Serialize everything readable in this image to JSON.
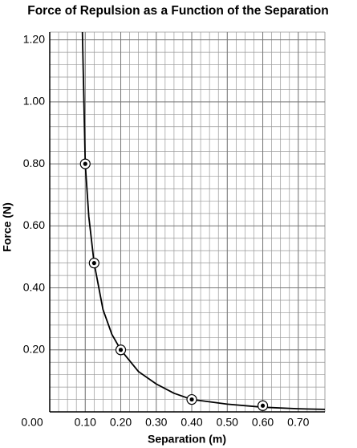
{
  "chart_data": {
    "type": "scatter",
    "title": "Force of Repulsion as a Function of the Separation",
    "x_label": "Separation (m)",
    "y_label": "Force (N)",
    "series": [
      {
        "type": "scatter",
        "color": "#000000",
        "x": [
          0.1,
          0.125,
          0.2,
          0.4,
          0.6
        ],
        "values": [
          0.8,
          0.48,
          0.2,
          0.04,
          0.02
        ]
      },
      {
        "type": "line",
        "color": "#000000",
        "x": [
          0.092,
          0.1,
          0.11,
          0.125,
          0.15,
          0.175,
          0.2,
          0.25,
          0.3,
          0.35,
          0.4,
          0.5,
          0.6,
          0.7,
          0.775
        ],
        "values": [
          1.225,
          0.8,
          0.63,
          0.48,
          0.33,
          0.25,
          0.2,
          0.13,
          0.09,
          0.06,
          0.04,
          0.025,
          0.015,
          0.01,
          0.008
        ]
      }
    ],
    "xlim": [
      0,
      0.775
    ],
    "ylim": [
      0,
      1.225
    ],
    "xticks": [
      {
        "value": 0,
        "label": "0.00"
      },
      {
        "value": 0.1,
        "label": "0.10"
      },
      {
        "value": 0.2,
        "label": "0.20"
      },
      {
        "value": 0.3,
        "label": "0.30"
      },
      {
        "value": 0.4,
        "label": "0.40"
      },
      {
        "value": 0.5,
        "label": "0.50"
      },
      {
        "value": 0.6,
        "label": "0.60"
      },
      {
        "value": 0.7,
        "label": "0.70"
      }
    ],
    "yticks": [
      {
        "value": 0.2,
        "label": "0.20"
      },
      {
        "value": 0.4,
        "label": "0.40"
      },
      {
        "value": 0.6,
        "label": "0.60"
      },
      {
        "value": 0.8,
        "label": "0.80"
      },
      {
        "value": 1.0,
        "label": "1.00"
      },
      {
        "value": 1.2,
        "label": "1.20"
      }
    ],
    "grid": true
  }
}
